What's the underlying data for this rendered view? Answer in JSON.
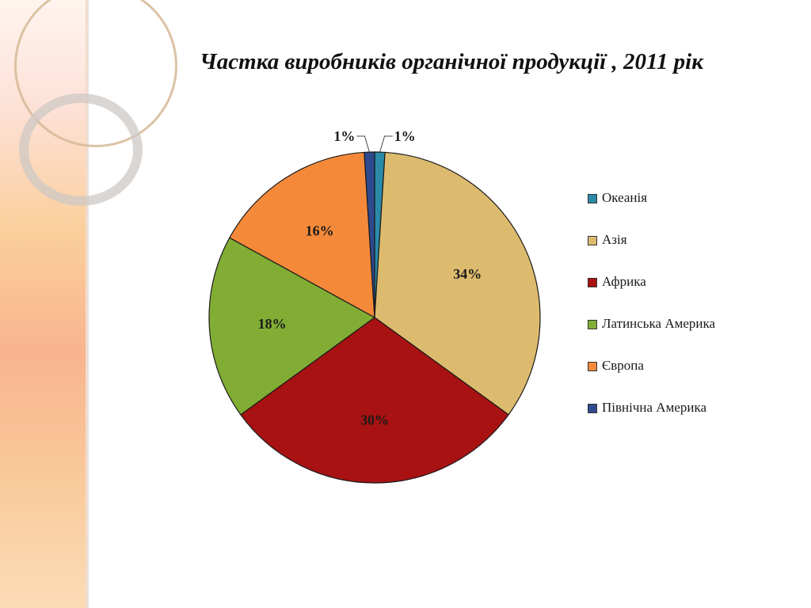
{
  "chart_data": {
    "type": "pie",
    "title": "Частка виробників органічної продукції , 2011 рік",
    "legend_position": "right",
    "slices": [
      {
        "name": "Океанія",
        "value": 1,
        "label": "1%",
        "color": "#2a8aa8"
      },
      {
        "name": "Азія",
        "value": 34,
        "label": "34%",
        "color": "#ddbb6e"
      },
      {
        "name": "Африка",
        "value": 30,
        "label": "30%",
        "color": "#a81212"
      },
      {
        "name": "Латинська Америка",
        "value": 18,
        "label": "18%",
        "color": "#82ad34"
      },
      {
        "name": "Європа",
        "value": 16,
        "label": "16%",
        "color": "#f5893a"
      },
      {
        "name": "Північна Америка",
        "value": 1,
        "label": "1%",
        "color": "#2e4a8e"
      }
    ]
  }
}
